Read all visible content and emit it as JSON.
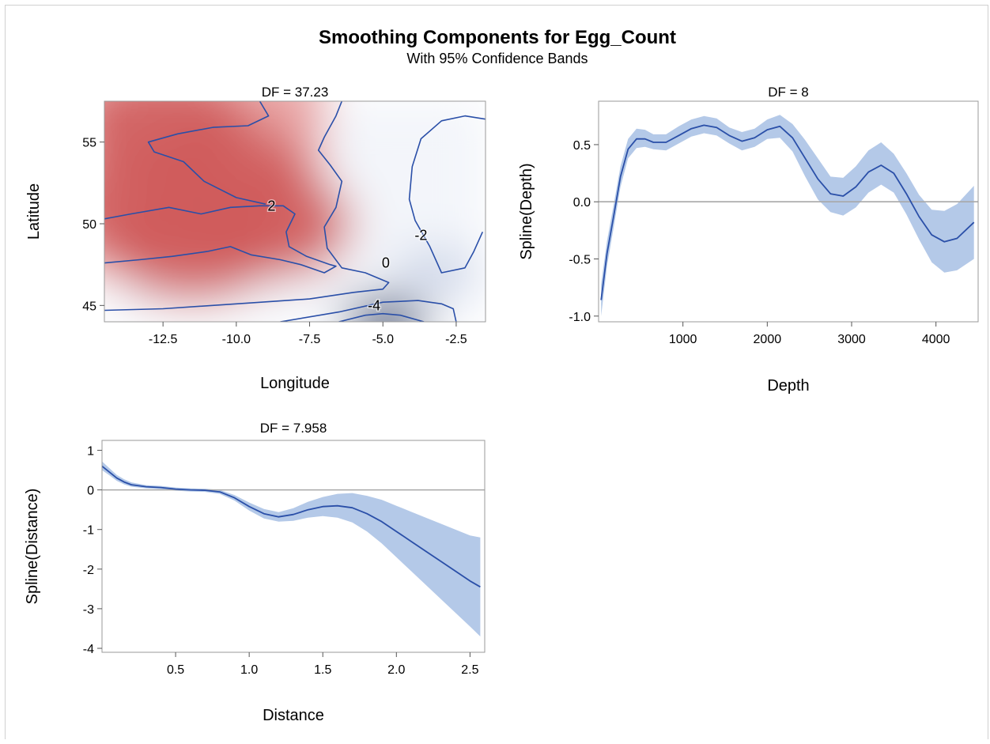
{
  "figure": {
    "title": "Smoothing Components for Egg_Count",
    "subtitle": "With 95% Confidence Bands"
  },
  "colors": {
    "curve": "#2a4fa8",
    "band": "#b4c9e8",
    "zero_line": "#a8a8a8",
    "heat_high": "#cf5a5a",
    "heat_low": "#1f3d6e",
    "heat_mid": "#ffffff"
  },
  "chart_data": [
    {
      "type": "heatmap",
      "panel_title": "DF = 37.23",
      "xlabel": "Longitude",
      "ylabel": "Latitude",
      "xlim": [
        -14.5,
        -1.5
      ],
      "ylim": [
        44,
        57.5
      ],
      "xticks": [
        "-12.5",
        "-10.0",
        "-7.5",
        "-5.0",
        "-2.5"
      ],
      "xtick_values": [
        -12.5,
        -10.0,
        -7.5,
        -5.0,
        -2.5
      ],
      "yticks": [
        "45",
        "50",
        "55"
      ],
      "ytick_values": [
        45,
        50,
        55
      ],
      "contour_levels": [
        "2",
        "0",
        "-2",
        "-4"
      ],
      "contour_label_positions": [
        {
          "label": "2",
          "x": -8.8,
          "y": 51.1
        },
        {
          "label": "0",
          "x": -4.9,
          "y": 47.6
        },
        {
          "label": "-2",
          "x": -3.7,
          "y": 49.3
        },
        {
          "label": "-4",
          "x": -5.3,
          "y": 45.0
        }
      ],
      "contours": [
        {
          "level": 2,
          "points": [
            [
              -14.5,
              50.3
            ],
            [
              -13.6,
              50.6
            ],
            [
              -12.3,
              51.0
            ],
            [
              -11.2,
              50.6
            ],
            [
              -10.2,
              51.0
            ],
            [
              -9.2,
              51.1
            ],
            [
              -8.4,
              51.1
            ],
            [
              -8.0,
              50.6
            ],
            [
              -8.3,
              49.5
            ],
            [
              -8.2,
              48.6
            ],
            [
              -7.6,
              48.0
            ],
            [
              -6.8,
              47.5
            ],
            [
              -6.6,
              47.4
            ],
            [
              -7.0,
              47.0
            ],
            [
              -7.8,
              47.5
            ],
            [
              -8.5,
              47.8
            ],
            [
              -9.5,
              48.1
            ],
            [
              -10.2,
              48.6
            ],
            [
              -11.0,
              48.3
            ],
            [
              -12.2,
              48.0
            ],
            [
              -13.3,
              47.8
            ],
            [
              -14.5,
              47.6
            ]
          ]
        },
        {
          "level": 2,
          "points": [
            [
              -9.2,
              57.5
            ],
            [
              -8.9,
              56.6
            ],
            [
              -9.6,
              56.0
            ],
            [
              -10.8,
              55.9
            ],
            [
              -12.0,
              55.5
            ],
            [
              -13.0,
              55.0
            ],
            [
              -12.8,
              54.4
            ],
            [
              -11.8,
              53.8
            ],
            [
              -11.1,
              52.6
            ],
            [
              -10.0,
              51.6
            ],
            [
              -9.0,
              51.2
            ]
          ]
        },
        {
          "level": 0,
          "points": [
            [
              -14.5,
              44.7
            ],
            [
              -12.5,
              44.8
            ],
            [
              -10.0,
              45.1
            ],
            [
              -7.5,
              45.4
            ],
            [
              -6.0,
              45.8
            ],
            [
              -5.0,
              46.0
            ],
            [
              -4.8,
              46.4
            ],
            [
              -5.6,
              47.0
            ],
            [
              -6.4,
              47.3
            ],
            [
              -6.9,
              48.5
            ],
            [
              -7.0,
              49.8
            ],
            [
              -6.6,
              51.0
            ],
            [
              -6.4,
              52.6
            ],
            [
              -6.8,
              53.6
            ],
            [
              -7.2,
              54.5
            ],
            [
              -7.0,
              55.3
            ],
            [
              -6.6,
              56.6
            ],
            [
              -6.4,
              57.5
            ]
          ]
        },
        {
          "level": -2,
          "points": [
            [
              -1.5,
              56.4
            ],
            [
              -2.2,
              56.6
            ],
            [
              -3.0,
              56.3
            ],
            [
              -3.7,
              55.2
            ],
            [
              -4.0,
              53.5
            ],
            [
              -4.1,
              51.5
            ],
            [
              -3.9,
              50.2
            ],
            [
              -3.4,
              48.6
            ],
            [
              -3.0,
              47.0
            ],
            [
              -2.2,
              47.3
            ],
            [
              -1.9,
              48.3
            ],
            [
              -1.6,
              49.5
            ]
          ]
        },
        {
          "level": -2,
          "points": [
            [
              -8.5,
              44.0
            ],
            [
              -6.5,
              44.6
            ],
            [
              -5.0,
              45.2
            ],
            [
              -3.8,
              45.3
            ],
            [
              -3.0,
              45.1
            ],
            [
              -2.6,
              44.8
            ],
            [
              -2.5,
              44.0
            ]
          ]
        },
        {
          "level": -4,
          "points": [
            [
              -6.5,
              44.0
            ],
            [
              -5.6,
              44.4
            ],
            [
              -5.0,
              44.5
            ],
            [
              -4.4,
              44.4
            ],
            [
              -3.6,
              44.0
            ]
          ]
        }
      ],
      "hotspots": [
        {
          "x": -13.0,
          "y": 51.2,
          "value": 3.8
        },
        {
          "x": -11.5,
          "y": 48.6,
          "value": 3.6
        },
        {
          "x": -9.0,
          "y": 50.0,
          "value": 3.2
        },
        {
          "x": -12.5,
          "y": 56.0,
          "value": 3.0
        },
        {
          "x": -10.5,
          "y": 53.0,
          "value": 2.8
        },
        {
          "x": -4.9,
          "y": 44.1,
          "value": -5.0
        },
        {
          "x": -3.2,
          "y": 47.1,
          "value": -2.6
        }
      ]
    },
    {
      "type": "line",
      "panel_title": "DF = 8",
      "xlabel": "Depth",
      "ylabel": "Spline(Depth)",
      "xlim": [
        0,
        4500
      ],
      "ylim": [
        -1.05,
        0.88
      ],
      "xticks": [
        "1000",
        "2000",
        "3000",
        "4000"
      ],
      "xtick_values": [
        1000,
        2000,
        3000,
        4000
      ],
      "yticks": [
        "0.5",
        "0.0",
        "-0.5",
        "-1.0"
      ],
      "ytick_values": [
        0.5,
        0.0,
        -0.5,
        -1.0
      ],
      "reference_line": 0,
      "x": [
        30,
        100,
        180,
        260,
        350,
        450,
        550,
        650,
        800,
        950,
        1100,
        1250,
        1400,
        1550,
        1700,
        1850,
        2000,
        2150,
        2300,
        2450,
        2600,
        2750,
        2900,
        3050,
        3200,
        3350,
        3500,
        3650,
        3800,
        3950,
        4100,
        4250,
        4450
      ],
      "y": [
        -0.86,
        -0.45,
        -0.12,
        0.22,
        0.46,
        0.55,
        0.55,
        0.52,
        0.52,
        0.58,
        0.64,
        0.67,
        0.65,
        0.58,
        0.53,
        0.56,
        0.63,
        0.66,
        0.56,
        0.38,
        0.2,
        0.07,
        0.05,
        0.13,
        0.26,
        0.32,
        0.25,
        0.07,
        -0.13,
        -0.29,
        -0.35,
        -0.32,
        -0.18
      ],
      "lower": [
        -1.0,
        -0.56,
        -0.22,
        0.13,
        0.38,
        0.47,
        0.48,
        0.46,
        0.45,
        0.51,
        0.57,
        0.6,
        0.58,
        0.51,
        0.45,
        0.48,
        0.55,
        0.56,
        0.44,
        0.22,
        0.02,
        -0.09,
        -0.12,
        -0.05,
        0.08,
        0.15,
        0.08,
        -0.11,
        -0.33,
        -0.53,
        -0.62,
        -0.6,
        -0.5
      ],
      "upper": [
        -0.72,
        -0.34,
        -0.02,
        0.31,
        0.55,
        0.64,
        0.63,
        0.59,
        0.59,
        0.66,
        0.72,
        0.75,
        0.73,
        0.65,
        0.61,
        0.64,
        0.72,
        0.76,
        0.68,
        0.54,
        0.38,
        0.22,
        0.21,
        0.31,
        0.45,
        0.52,
        0.42,
        0.25,
        0.06,
        -0.07,
        -0.08,
        -0.02,
        0.14
      ]
    },
    {
      "type": "line",
      "panel_title": "DF = 7.958",
      "xlabel": "Distance",
      "ylabel": "Spline(Distance)",
      "xlim": [
        0,
        2.6
      ],
      "ylim": [
        -4.1,
        1.25
      ],
      "xticks": [
        "0.5",
        "1.0",
        "1.5",
        "2.0",
        "2.5"
      ],
      "xtick_values": [
        0.5,
        1.0,
        1.5,
        2.0,
        2.5
      ],
      "yticks": [
        "1",
        "0",
        "-1",
        "-2",
        "-3",
        "-4"
      ],
      "ytick_values": [
        1,
        0,
        -1,
        -2,
        -3,
        -4
      ],
      "reference_line": 0,
      "x": [
        0.0,
        0.05,
        0.1,
        0.15,
        0.2,
        0.3,
        0.4,
        0.5,
        0.6,
        0.7,
        0.8,
        0.9,
        1.0,
        1.1,
        1.2,
        1.3,
        1.4,
        1.5,
        1.6,
        1.7,
        1.8,
        1.9,
        2.0,
        2.1,
        2.2,
        2.3,
        2.4,
        2.5,
        2.57
      ],
      "y": [
        0.6,
        0.45,
        0.3,
        0.2,
        0.13,
        0.08,
        0.06,
        0.02,
        0.0,
        -0.01,
        -0.05,
        -0.2,
        -0.42,
        -0.6,
        -0.68,
        -0.62,
        -0.5,
        -0.42,
        -0.4,
        -0.45,
        -0.6,
        -0.8,
        -1.05,
        -1.3,
        -1.55,
        -1.8,
        -2.05,
        -2.3,
        -2.45
      ],
      "lower": [
        0.5,
        0.37,
        0.23,
        0.14,
        0.08,
        0.04,
        0.02,
        -0.02,
        -0.04,
        -0.05,
        -0.1,
        -0.27,
        -0.52,
        -0.72,
        -0.8,
        -0.78,
        -0.7,
        -0.66,
        -0.7,
        -0.82,
        -1.05,
        -1.35,
        -1.7,
        -2.05,
        -2.4,
        -2.75,
        -3.1,
        -3.45,
        -3.7
      ],
      "upper": [
        0.72,
        0.55,
        0.38,
        0.27,
        0.19,
        0.12,
        0.1,
        0.06,
        0.04,
        0.03,
        0.0,
        -0.13,
        -0.32,
        -0.48,
        -0.56,
        -0.46,
        -0.3,
        -0.18,
        -0.1,
        -0.08,
        -0.15,
        -0.25,
        -0.4,
        -0.55,
        -0.7,
        -0.85,
        -1.0,
        -1.15,
        -1.2
      ]
    }
  ]
}
